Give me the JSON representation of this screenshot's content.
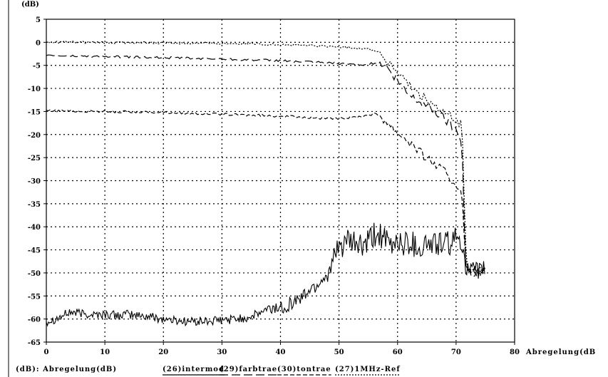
{
  "chart_data": {
    "type": "line",
    "ylabel": "(dB)",
    "xlabel": "Abregelung(dB",
    "xlim": [
      0,
      80
    ],
    "ylim": [
      -65,
      5
    ],
    "xticks": [
      0,
      10,
      20,
      30,
      40,
      50,
      60,
      70,
      80
    ],
    "yticks": [
      5,
      0,
      -5,
      -10,
      -15,
      -20,
      -25,
      -30,
      -35,
      -40,
      -45,
      -50,
      -55,
      -60,
      -65
    ],
    "grid": true,
    "legend_axis_label": "(dB): Abregelung(dB)",
    "series": [
      {
        "name": "(26)intermod",
        "style": "solid",
        "x": [
          0,
          2,
          4,
          6,
          8,
          10,
          12,
          14,
          16,
          18,
          20,
          22,
          24,
          26,
          28,
          30,
          32,
          34,
          36,
          38,
          40,
          42,
          44,
          45,
          46,
          47,
          48,
          49,
          50,
          51,
          52,
          53,
          54,
          55,
          56,
          57,
          58,
          59,
          60,
          61,
          62,
          63,
          64,
          65,
          66,
          67,
          68,
          69,
          70,
          70.5,
          71,
          71.3,
          71.5,
          71.7,
          72,
          73,
          74,
          75
        ],
        "y": [
          -60.5,
          -59.8,
          -58.5,
          -58.8,
          -59.0,
          -59.0,
          -59.2,
          -59.0,
          -59.3,
          -59.5,
          -60.0,
          -60.3,
          -60.5,
          -60.5,
          -60.5,
          -60.3,
          -60.0,
          -59.8,
          -59.0,
          -57.8,
          -57.5,
          -56.5,
          -55.0,
          -53.5,
          -53.0,
          -51.5,
          -50.5,
          -47.5,
          -45.0,
          -43.0,
          -44.0,
          -43.5,
          -44.5,
          -43.5,
          -42.0,
          -41.5,
          -43.5,
          -44.5,
          -42.5,
          -44.0,
          -43.0,
          -44.0,
          -44.5,
          -43.5,
          -44.0,
          -43.5,
          -44.0,
          -43.5,
          -43.0,
          -42.0,
          -43.0,
          -45.0,
          -47.0,
          -49.0,
          -49.5,
          -49.5,
          -49.5,
          -49.0
        ]
      },
      {
        "name": "(29)farbtrae",
        "style": "long-dash",
        "x": [
          0,
          5,
          10,
          15,
          20,
          25,
          30,
          35,
          40,
          45,
          50,
          53,
          55,
          57,
          58,
          60,
          62,
          64,
          66,
          68,
          70,
          71,
          71.3,
          71.6,
          72,
          73,
          74,
          75
        ],
        "y": [
          -2.8,
          -3.0,
          -3.1,
          -3.2,
          -3.3,
          -3.5,
          -3.6,
          -3.8,
          -4.0,
          -4.3,
          -4.6,
          -4.8,
          -4.7,
          -4.5,
          -5.5,
          -8.5,
          -11.5,
          -13.0,
          -14.5,
          -16.5,
          -19.0,
          -21.0,
          -35.0,
          -48.0,
          -49.5,
          -50.0,
          -49.5,
          -49.5
        ]
      },
      {
        "name": "(30)tontrae",
        "style": "short-dash",
        "x": [
          0,
          5,
          10,
          15,
          20,
          25,
          30,
          35,
          40,
          45,
          48,
          50,
          52,
          54,
          56,
          57,
          58,
          60,
          62,
          64,
          66,
          68,
          69,
          70,
          70.5,
          71,
          71.3,
          71.6,
          72,
          73,
          74,
          75
        ],
        "y": [
          -14.8,
          -14.9,
          -15.0,
          -15.1,
          -15.2,
          -15.4,
          -15.6,
          -15.8,
          -16.0,
          -16.3,
          -16.6,
          -16.6,
          -16.3,
          -16.0,
          -15.5,
          -15.9,
          -17.0,
          -19.5,
          -21.5,
          -24.0,
          -26.0,
          -28.0,
          -30.0,
          -30.5,
          -31.5,
          -32.0,
          -40.0,
          -48.0,
          -49.5,
          -49.5,
          -50.0,
          -49.5
        ]
      },
      {
        "name": "(27)1MHz-Ref",
        "style": "dotted",
        "x": [
          0,
          5,
          10,
          15,
          20,
          25,
          30,
          35,
          40,
          45,
          50,
          54,
          56,
          57,
          58,
          60,
          62,
          64,
          66,
          68,
          70,
          71,
          71.3,
          71.6,
          72,
          73,
          74,
          75
        ],
        "y": [
          0,
          0,
          -0.1,
          -0.1,
          -0.1,
          -0.2,
          -0.2,
          -0.3,
          -0.5,
          -0.7,
          -1.0,
          -1.3,
          -1.7,
          -2.2,
          -4.0,
          -6.5,
          -9.5,
          -11.5,
          -13.5,
          -15.5,
          -17.0,
          -17.8,
          -30.0,
          -44.0,
          -49.5,
          -49.5,
          -49.5,
          -49.0
        ]
      }
    ]
  }
}
